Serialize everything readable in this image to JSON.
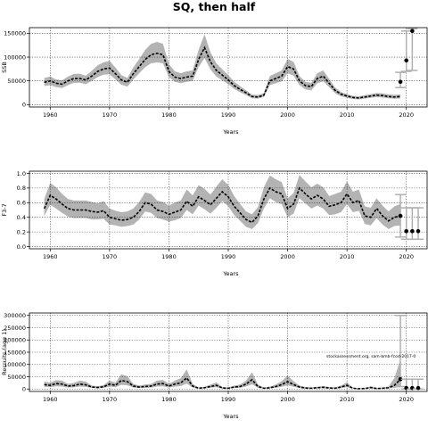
{
  "title": "SQ, then half",
  "annotation": "stockassessment.org, sam-bmb-fcod-2017-0",
  "chart_data": [
    {
      "type": "line",
      "key": "ssb",
      "ylabel": "SSB",
      "xlabel": "Years",
      "xlim": [
        1956.5,
        2023.5
      ],
      "ylim": [
        -5000,
        162000
      ],
      "xticks": [
        1960,
        1970,
        1980,
        1990,
        2000,
        2010,
        2020
      ],
      "yticks": [
        0,
        50000,
        100000,
        150000
      ],
      "ytick_labels": [
        "0",
        "50000",
        "100000",
        "150000"
      ],
      "grid": true,
      "x": [
        1959,
        1960,
        1961,
        1962,
        1963,
        1964,
        1965,
        1966,
        1967,
        1968,
        1969,
        1970,
        1971,
        1972,
        1973,
        1974,
        1975,
        1976,
        1977,
        1978,
        1979,
        1980,
        1981,
        1982,
        1983,
        1984,
        1985,
        1986,
        1987,
        1988,
        1989,
        1990,
        1991,
        1992,
        1993,
        1994,
        1995,
        1996,
        1997,
        1998,
        1999,
        2000,
        2001,
        2002,
        2003,
        2004,
        2005,
        2006,
        2007,
        2008,
        2009,
        2010,
        2011,
        2012,
        2013,
        2014,
        2015,
        2016,
        2017,
        2018,
        2019
      ],
      "median": [
        47000,
        50000,
        45000,
        43000,
        50000,
        55000,
        55000,
        52000,
        60000,
        70000,
        75000,
        77000,
        65000,
        52000,
        47000,
        65000,
        80000,
        95000,
        105000,
        108000,
        105000,
        70000,
        58000,
        55000,
        58000,
        60000,
        95000,
        120000,
        90000,
        72000,
        62000,
        52000,
        40000,
        32000,
        25000,
        17000,
        16000,
        20000,
        50000,
        55000,
        60000,
        80000,
        75000,
        50000,
        40000,
        38000,
        55000,
        60000,
        45000,
        30000,
        22000,
        18000,
        15000,
        14000,
        16000,
        18000,
        20000,
        19000,
        17000,
        16000,
        17000
      ],
      "lower": [
        39000,
        41000,
        37000,
        35000,
        41000,
        46000,
        46000,
        43000,
        50000,
        58000,
        63000,
        64000,
        53000,
        42000,
        38000,
        53000,
        66000,
        79000,
        87000,
        89000,
        87000,
        58000,
        48000,
        45000,
        48000,
        50000,
        79000,
        98000,
        74000,
        59000,
        51000,
        43000,
        33000,
        26000,
        20000,
        13500,
        12500,
        16000,
        41000,
        45000,
        49000,
        66000,
        61000,
        41000,
        32000,
        30000,
        45000,
        49000,
        37000,
        24000,
        17500,
        14500,
        12000,
        11000,
        12800,
        14500,
        16000,
        15000,
        13500,
        12500,
        13000
      ],
      "upper": [
        56000,
        59000,
        53000,
        51000,
        59000,
        65000,
        65000,
        61000,
        71000,
        83000,
        89000,
        92000,
        78000,
        62000,
        56000,
        78000,
        96000,
        115000,
        128000,
        132000,
        128000,
        85000,
        70000,
        66000,
        70000,
        72000,
        115000,
        148000,
        110000,
        87000,
        74000,
        62000,
        48000,
        39000,
        30000,
        21000,
        20000,
        24000,
        60000,
        66000,
        72000,
        96000,
        90000,
        60000,
        48000,
        46000,
        66000,
        72000,
        54000,
        36000,
        26500,
        22000,
        18500,
        17500,
        19800,
        22000,
        24500,
        23500,
        21500,
        20500,
        21500
      ],
      "forecast": {
        "x": [
          2019,
          2020,
          2021
        ],
        "median": [
          48000,
          93000,
          155000
        ],
        "lower": [
          36000,
          70000,
          72000
        ],
        "upper": [
          68000,
          155000,
          160000
        ]
      }
    },
    {
      "type": "line",
      "key": "fbar",
      "ylabel": "F3-7",
      "xlabel": "Years",
      "xlim": [
        1956.5,
        2023.5
      ],
      "ylim": [
        -0.03,
        1.03
      ],
      "xticks": [
        1960,
        1970,
        1980,
        1990,
        2000,
        2010,
        2020
      ],
      "yticks": [
        0,
        0.2,
        0.4,
        0.6,
        0.8,
        1.0
      ],
      "ytick_labels": [
        "0.0",
        "0.2",
        "0.4",
        "0.6",
        "0.8",
        "1.0"
      ],
      "grid": true,
      "x": [
        1959,
        1960,
        1961,
        1962,
        1963,
        1964,
        1965,
        1966,
        1967,
        1968,
        1969,
        1970,
        1971,
        1972,
        1973,
        1974,
        1975,
        1976,
        1977,
        1978,
        1979,
        1980,
        1981,
        1982,
        1983,
        1984,
        1985,
        1986,
        1987,
        1988,
        1989,
        1990,
        1991,
        1992,
        1993,
        1994,
        1995,
        1996,
        1997,
        1998,
        1999,
        2000,
        2001,
        2002,
        2003,
        2004,
        2005,
        2006,
        2007,
        2008,
        2009,
        2010,
        2011,
        2012,
        2013,
        2014,
        2015,
        2016,
        2017,
        2018,
        2019
      ],
      "median": [
        0.52,
        0.7,
        0.65,
        0.58,
        0.52,
        0.5,
        0.5,
        0.5,
        0.48,
        0.47,
        0.49,
        0.4,
        0.38,
        0.36,
        0.37,
        0.4,
        0.48,
        0.6,
        0.58,
        0.5,
        0.48,
        0.44,
        0.47,
        0.5,
        0.62,
        0.55,
        0.68,
        0.63,
        0.57,
        0.66,
        0.75,
        0.68,
        0.55,
        0.46,
        0.37,
        0.33,
        0.42,
        0.65,
        0.8,
        0.75,
        0.72,
        0.52,
        0.58,
        0.8,
        0.72,
        0.65,
        0.7,
        0.65,
        0.55,
        0.57,
        0.6,
        0.72,
        0.6,
        0.63,
        0.42,
        0.4,
        0.52,
        0.42,
        0.35,
        0.4,
        0.42
      ],
      "lower": [
        0.42,
        0.57,
        0.52,
        0.46,
        0.41,
        0.39,
        0.39,
        0.39,
        0.37,
        0.37,
        0.38,
        0.3,
        0.29,
        0.27,
        0.28,
        0.3,
        0.37,
        0.48,
        0.46,
        0.39,
        0.37,
        0.34,
        0.36,
        0.39,
        0.5,
        0.44,
        0.56,
        0.51,
        0.45,
        0.53,
        0.62,
        0.55,
        0.43,
        0.35,
        0.27,
        0.24,
        0.32,
        0.52,
        0.66,
        0.61,
        0.58,
        0.4,
        0.45,
        0.66,
        0.59,
        0.52,
        0.56,
        0.52,
        0.43,
        0.44,
        0.47,
        0.58,
        0.47,
        0.49,
        0.31,
        0.29,
        0.39,
        0.3,
        0.24,
        0.28,
        0.29
      ],
      "upper": [
        0.65,
        0.87,
        0.81,
        0.72,
        0.65,
        0.63,
        0.63,
        0.63,
        0.61,
        0.59,
        0.62,
        0.52,
        0.49,
        0.47,
        0.48,
        0.52,
        0.61,
        0.74,
        0.72,
        0.63,
        0.61,
        0.56,
        0.6,
        0.63,
        0.78,
        0.7,
        0.84,
        0.79,
        0.71,
        0.82,
        0.92,
        0.84,
        0.69,
        0.58,
        0.48,
        0.44,
        0.54,
        0.81,
        0.97,
        0.92,
        0.88,
        0.66,
        0.73,
        0.98,
        0.89,
        0.81,
        0.86,
        0.81,
        0.69,
        0.72,
        0.75,
        0.89,
        0.75,
        0.78,
        0.55,
        0.53,
        0.66,
        0.56,
        0.48,
        0.55,
        0.58
      ],
      "forecast": {
        "x": [
          2019,
          2020,
          2021,
          2022
        ],
        "median": [
          0.42,
          0.21,
          0.21,
          0.21
        ],
        "lower": [
          0.13,
          0.1,
          0.1,
          0.1
        ],
        "upper": [
          0.71,
          0.53,
          0.53,
          0.53
        ]
      }
    },
    {
      "type": "line",
      "key": "recruits",
      "ylabel": "Recruits (age 1)",
      "xlabel": "Years",
      "xlim": [
        1956.5,
        2023.5
      ],
      "ylim": [
        -10000,
        310000
      ],
      "xticks": [
        1960,
        1970,
        1980,
        1990,
        2000,
        2010,
        2020
      ],
      "yticks": [
        0,
        50000,
        100000,
        150000,
        200000,
        250000,
        300000
      ],
      "ytick_labels": [
        "0",
        "50000",
        "100000",
        "150000",
        "200000",
        "250000",
        "300000"
      ],
      "grid": true,
      "x": [
        1959,
        1960,
        1961,
        1962,
        1963,
        1964,
        1965,
        1966,
        1967,
        1968,
        1969,
        1970,
        1971,
        1972,
        1973,
        1974,
        1975,
        1976,
        1977,
        1978,
        1979,
        1980,
        1981,
        1982,
        1983,
        1984,
        1985,
        1986,
        1987,
        1988,
        1989,
        1990,
        1991,
        1992,
        1993,
        1994,
        1995,
        1996,
        1997,
        1998,
        1999,
        2000,
        2001,
        2002,
        2003,
        2004,
        2005,
        2006,
        2007,
        2008,
        2009,
        2010,
        2011,
        2012,
        2013,
        2014,
        2015,
        2016,
        2017,
        2018,
        2019
      ],
      "median": [
        18000,
        15000,
        22000,
        20000,
        12000,
        14000,
        20000,
        17000,
        8000,
        6000,
        9000,
        20000,
        15000,
        35000,
        30000,
        12000,
        8000,
        10000,
        12000,
        20000,
        22000,
        12000,
        20000,
        25000,
        45000,
        12000,
        3000,
        5000,
        10000,
        15000,
        4000,
        3000,
        8000,
        10000,
        20000,
        38000,
        10000,
        3000,
        5000,
        10000,
        18000,
        30000,
        18000,
        8000,
        4000,
        3000,
        5000,
        7000,
        4000,
        3000,
        8000,
        15000,
        3000,
        1000,
        2000,
        6000,
        2000,
        3000,
        5000,
        15000,
        40000
      ],
      "lower": [
        9000,
        7500,
        11000,
        10000,
        6000,
        7000,
        10000,
        8500,
        4000,
        3000,
        4500,
        10000,
        7500,
        17000,
        15000,
        6000,
        4000,
        5000,
        6000,
        10000,
        11000,
        6000,
        10000,
        12000,
        22000,
        6000,
        1500,
        2500,
        5000,
        7500,
        2000,
        1500,
        4000,
        5000,
        10000,
        19000,
        5000,
        1500,
        2500,
        5000,
        9000,
        15000,
        9000,
        4000,
        2000,
        1500,
        2500,
        3500,
        2000,
        1500,
        4000,
        7500,
        1500,
        500,
        1000,
        3000,
        1000,
        1500,
        2500,
        5000,
        8000
      ],
      "upper": [
        30000,
        26000,
        36000,
        34000,
        21000,
        25000,
        34000,
        30000,
        14000,
        11000,
        16000,
        34000,
        26000,
        60000,
        52000,
        21000,
        14000,
        18000,
        21000,
        34000,
        37000,
        21000,
        34000,
        44000,
        80000,
        21000,
        6000,
        9000,
        18000,
        27000,
        8000,
        6000,
        14000,
        18000,
        34000,
        68000,
        18000,
        6000,
        9000,
        18000,
        32000,
        55000,
        32000,
        14000,
        8000,
        6000,
        9000,
        12000,
        8000,
        6000,
        14000,
        27000,
        6000,
        2500,
        4000,
        11000,
        4000,
        6000,
        10000,
        45000,
        120000
      ],
      "forecast": {
        "x": [
          2019,
          2020,
          2021,
          2022
        ],
        "median": [
          40000,
          4000,
          4000,
          4000
        ],
        "lower": [
          10000,
          0,
          0,
          0
        ],
        "upper": [
          300000,
          40000,
          40000,
          40000
        ]
      }
    }
  ]
}
